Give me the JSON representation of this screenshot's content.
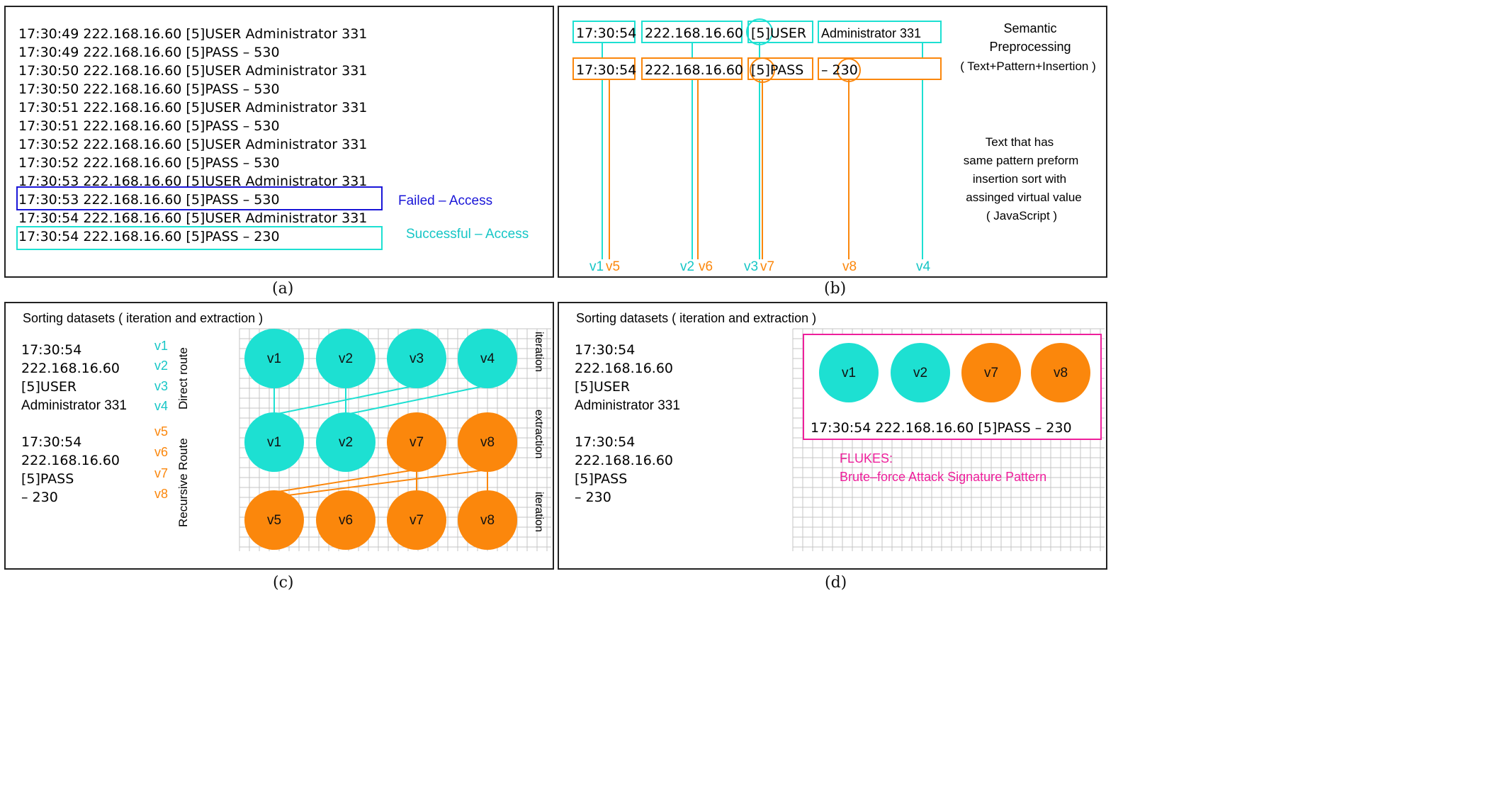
{
  "colors": {
    "cyan": "#1de0d2",
    "cyan_text": "#16c6c6",
    "orange": "#fb870c",
    "blue": "#1a16d8",
    "magenta": "#ee1f9b",
    "grid": "#c4c4c4",
    "dark": "#111111"
  },
  "captions": {
    "a": "(a)",
    "b": "(b)",
    "c": "(c)",
    "d": "(d)"
  },
  "panel_a": {
    "log_lines": [
      "17:30:49  222.168.16.60  [5]USER  Administrator  331",
      "17:30:49  222.168.16.60  [5]PASS  –  530",
      "17:30:50  222.168.16.60  [5]USER  Administrator  331",
      "17:30:50  222.168.16.60  [5]PASS  –  530",
      "17:30:51  222.168.16.60  [5]USER  Administrator  331",
      "17:30:51  222.168.16.60  [5]PASS  –  530",
      "17:30:52  222.168.16.60  [5]USER  Administrator  331",
      "17:30:52  222.168.16.60  [5]PASS  –  530",
      "17:30:53  222.168.16.60  [5]USER  Administrator  331",
      "17:30:53  222.168.16.60  [5]PASS  –  530",
      "17:30:54  222.168.16.60  [5]USER  Administrator  331",
      "17:30:54  222.168.16.60  [5]PASS  –  230"
    ],
    "failed_label": "Failed  –  Access",
    "success_label": "Successful  –  Access"
  },
  "panel_b": {
    "user_row": [
      "17:30:54",
      "222.168.16.60",
      "[5]USER",
      "Administrator  331"
    ],
    "pass_row": [
      "17:30:54",
      "222.168.16.60",
      "[5]PASS",
      "–  230"
    ],
    "title_lines": [
      "Semantic",
      "Preprocessing",
      "( Text+Pattern+Insertion )"
    ],
    "note_lines": [
      "Text  that  has",
      "same  pattern  preform",
      "insertion  sort  with",
      "assinged  virtual  value",
      "( JavaScript )"
    ],
    "virtual_labels": [
      "v1",
      "v5",
      "v2",
      "v6",
      "v3",
      "v7",
      "v8",
      "v4"
    ]
  },
  "panel_c": {
    "title": "Sorting  datasets  ( iteration  and  extraction )",
    "user_items": [
      "17:30:54",
      "222.168.16.60",
      "[5]USER",
      "Administrator  331"
    ],
    "pass_items": [
      "17:30:54",
      "222.168.16.60",
      "[5]PASS",
      "–  230"
    ],
    "user_vlabels": [
      "v1",
      "v2",
      "v3",
      "v4"
    ],
    "pass_vlabels": [
      "v5",
      "v6",
      "v7",
      "v8"
    ],
    "direct_route": "Direct  route",
    "recursive_route": "Recursive  Route",
    "row_labels": [
      "iteration",
      "extraction",
      "iteration"
    ],
    "nodes_row1": [
      "v1",
      "v2",
      "v3",
      "v4"
    ],
    "nodes_row2": [
      "v1",
      "v2",
      "v7",
      "v8"
    ],
    "nodes_row3": [
      "v5",
      "v6",
      "v7",
      "v8"
    ]
  },
  "panel_d": {
    "title": "Sorting  datasets  ( iteration  and  extraction )",
    "user_items": [
      "17:30:54",
      "222.168.16.60",
      "[5]USER",
      "Administrator  331"
    ],
    "pass_items": [
      "17:30:54",
      "222.168.16.60",
      "[5]PASS",
      "–  230"
    ],
    "nodes": [
      "v1",
      "v2",
      "v7",
      "v8"
    ],
    "result_line": "17:30:54  222.168.16.60  [5]PASS  –  230",
    "flukes_title": "FLUKES:",
    "flukes_desc": "Brute–force  Attack  Signature  Pattern"
  }
}
